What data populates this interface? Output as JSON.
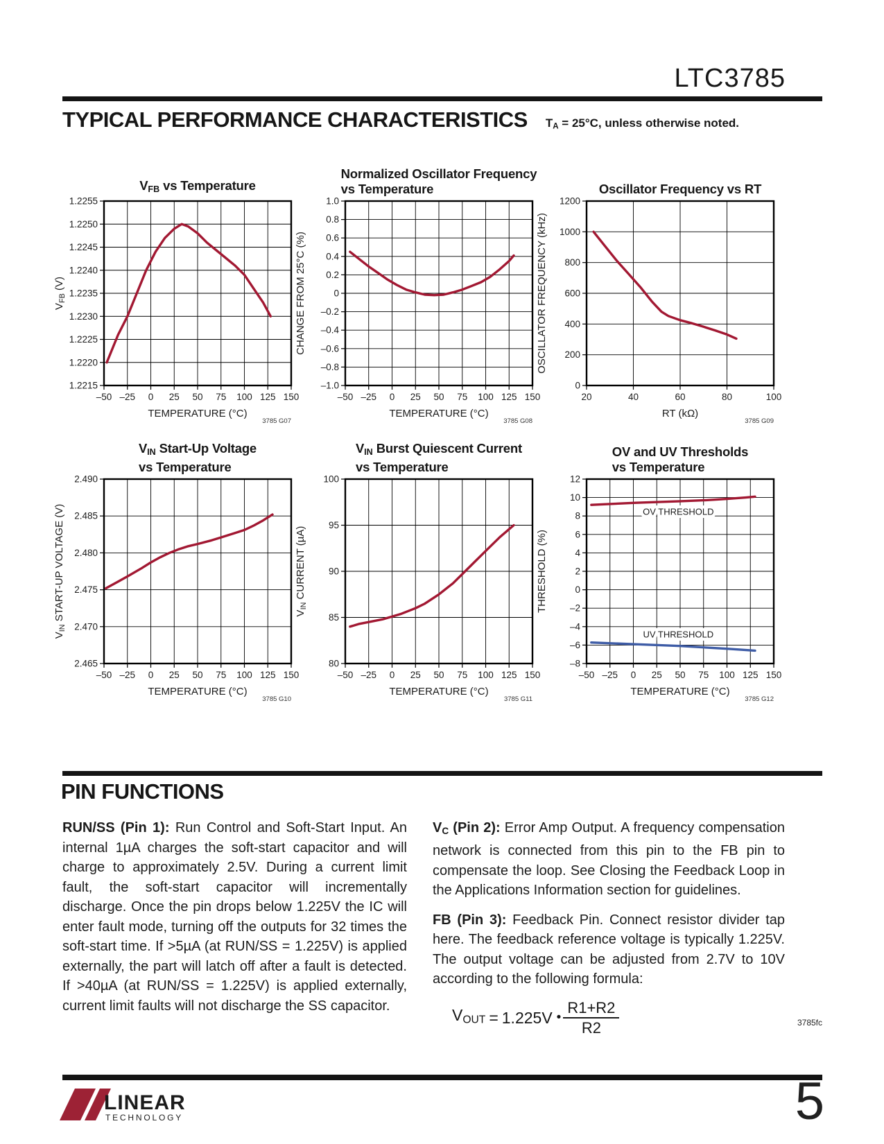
{
  "header": {
    "doc_title": "LTC3785",
    "section_title": "TYPICAL PERFORMANCE CHARACTERISTICS",
    "section_note": "T_{A} = 25°C, unless otherwise noted."
  },
  "colors": {
    "curve_red": "#A21832",
    "curve_blue": "#3E5CA6",
    "logo_red": "#9D2235"
  },
  "chart_data": [
    {
      "type": "line",
      "id": "3785 G07",
      "title_lines": [
        "V_{FB} vs Temperature"
      ],
      "xlabel": "TEMPERATURE (°C)",
      "ylabel": "V_{FB} (V)",
      "xlim": [
        -50,
        150
      ],
      "ylim": [
        1.2215,
        1.2255
      ],
      "xticks": [
        -50,
        -25,
        0,
        25,
        50,
        75,
        100,
        125,
        150
      ],
      "xticklabels": [
        "–50",
        "–25",
        "0",
        "25",
        "50",
        "75",
        "100",
        "125",
        "150"
      ],
      "yticks": [
        1.2255,
        1.225,
        1.2245,
        1.224,
        1.2235,
        1.223,
        1.2225,
        1.222,
        1.2215
      ],
      "yticklabels": [
        "1.2255",
        "1.2250",
        "1.2245",
        "1.2240",
        "1.2235",
        "1.2230",
        "1.2225",
        "1.2220",
        "1.2215"
      ],
      "series": [
        {
          "name": "vfb",
          "color": "#A21832",
          "points": [
            [
              -47,
              1.222
            ],
            [
              -35,
              1.2226
            ],
            [
              -25,
              1.223
            ],
            [
              -15,
              1.2235
            ],
            [
              -5,
              1.224
            ],
            [
              5,
              1.2244
            ],
            [
              15,
              1.2247
            ],
            [
              25,
              1.2249
            ],
            [
              33,
              1.225
            ],
            [
              40,
              1.22495
            ],
            [
              50,
              1.2248
            ],
            [
              60,
              1.2246
            ],
            [
              75,
              1.22435
            ],
            [
              90,
              1.2241
            ],
            [
              100,
              1.2239
            ],
            [
              110,
              1.2236
            ],
            [
              120,
              1.2233
            ],
            [
              128,
              1.223
            ]
          ]
        }
      ],
      "annotations": []
    },
    {
      "type": "line",
      "id": "3785 G08",
      "title_lines": [
        "Normalized Oscillator Frequency",
        "vs Temperature"
      ],
      "xlabel": "TEMPERATURE (°C)",
      "ylabel": "CHANGE FROM 25°C (%)",
      "xlim": [
        -50,
        150
      ],
      "ylim": [
        -1.0,
        1.0
      ],
      "xticks": [
        -50,
        -25,
        0,
        25,
        50,
        75,
        100,
        125,
        150
      ],
      "xticklabels": [
        "–50",
        "–25",
        "0",
        "25",
        "50",
        "75",
        "100",
        "125",
        "150"
      ],
      "yticks": [
        1.0,
        0.8,
        0.6,
        0.4,
        0.2,
        0,
        -0.2,
        -0.4,
        -0.6,
        -0.8,
        -1.0
      ],
      "yticklabels": [
        "1.0",
        "0.8",
        "0.6",
        "0.4",
        "0.2",
        "0",
        "–0.2",
        "–0.4",
        "–0.6",
        "–0.8",
        "–1.0"
      ],
      "series": [
        {
          "name": "freq-change",
          "color": "#A21832",
          "points": [
            [
              -45,
              0.45
            ],
            [
              -35,
              0.37
            ],
            [
              -25,
              0.29
            ],
            [
              -15,
              0.22
            ],
            [
              -5,
              0.15
            ],
            [
              5,
              0.09
            ],
            [
              15,
              0.04
            ],
            [
              25,
              0.01
            ],
            [
              35,
              -0.015
            ],
            [
              45,
              -0.02
            ],
            [
              55,
              -0.015
            ],
            [
              65,
              0.01
            ],
            [
              75,
              0.04
            ],
            [
              85,
              0.08
            ],
            [
              95,
              0.12
            ],
            [
              105,
              0.18
            ],
            [
              115,
              0.26
            ],
            [
              125,
              0.35
            ],
            [
              130,
              0.41
            ]
          ]
        }
      ],
      "annotations": []
    },
    {
      "type": "line",
      "id": "3785 G09",
      "title_lines": [
        "Oscillator Frequency vs RT"
      ],
      "xlabel": "RT (kΩ)",
      "ylabel": "OSCILLATOR FREQUENCY (kHz)",
      "xlim": [
        20,
        100
      ],
      "ylim": [
        0,
        1200
      ],
      "xticks": [
        20,
        40,
        60,
        80,
        100
      ],
      "xticklabels": [
        "20",
        "40",
        "60",
        "80",
        "100"
      ],
      "yticks": [
        1200,
        1000,
        800,
        600,
        400,
        200,
        0
      ],
      "yticklabels": [
        "1200",
        "1000",
        "800",
        "600",
        "400",
        "200",
        "0"
      ],
      "series": [
        {
          "name": "osc-freq",
          "color": "#A21832",
          "points": [
            [
              23,
              1000
            ],
            [
              28,
              905
            ],
            [
              33,
              810
            ],
            [
              38,
              725
            ],
            [
              43,
              640
            ],
            [
              48,
              545
            ],
            [
              52,
              480
            ],
            [
              55,
              452
            ],
            [
              60,
              425
            ],
            [
              65,
              405
            ],
            [
              70,
              382
            ],
            [
              75,
              358
            ],
            [
              80,
              332
            ],
            [
              84,
              305
            ]
          ]
        }
      ],
      "annotations": []
    },
    {
      "type": "line",
      "id": "3785 G10",
      "title_lines": [
        "V_{IN} Start-Up Voltage",
        "vs Temperature"
      ],
      "xlabel": "TEMPERATURE (°C)",
      "ylabel": "V_{IN} START-UP VOLTAGE (V)",
      "xlim": [
        -50,
        150
      ],
      "ylim": [
        2.465,
        2.49
      ],
      "xticks": [
        -50,
        -25,
        0,
        25,
        50,
        75,
        100,
        125,
        150
      ],
      "xticklabels": [
        "–50",
        "–25",
        "0",
        "25",
        "50",
        "75",
        "100",
        "125",
        "150"
      ],
      "yticks": [
        2.49,
        2.485,
        2.48,
        2.475,
        2.47,
        2.465
      ],
      "yticklabels": [
        "2.490",
        "2.485",
        "2.480",
        "2.475",
        "2.470",
        "2.465"
      ],
      "series": [
        {
          "name": "startup-voltage",
          "color": "#A21832",
          "points": [
            [
              -48,
              2.4752
            ],
            [
              -35,
              2.4761
            ],
            [
              -25,
              2.4768
            ],
            [
              -10,
              2.4779
            ],
            [
              0,
              2.4787
            ],
            [
              10,
              2.4794
            ],
            [
              20,
              2.48
            ],
            [
              30,
              2.4805
            ],
            [
              40,
              2.4809
            ],
            [
              50,
              2.4812
            ],
            [
              65,
              2.4817
            ],
            [
              75,
              2.4821
            ],
            [
              90,
              2.4827
            ],
            [
              100,
              2.4831
            ],
            [
              110,
              2.4837
            ],
            [
              120,
              2.4844
            ],
            [
              130,
              2.4852
            ]
          ]
        }
      ],
      "annotations": []
    },
    {
      "type": "line",
      "id": "3785 G11",
      "title_lines": [
        "V_{IN} Burst Quiescent Current",
        "vs Temperature"
      ],
      "xlabel": "TEMPERATURE (°C)",
      "ylabel": "V_{IN} CURRENT (µA)",
      "xlim": [
        -50,
        150
      ],
      "ylim": [
        80,
        100
      ],
      "xticks": [
        -50,
        -25,
        0,
        25,
        50,
        75,
        100,
        125,
        150
      ],
      "xticklabels": [
        "–50",
        "–25",
        "0",
        "25",
        "50",
        "75",
        "100",
        "125",
        "150"
      ],
      "yticks": [
        100,
        95,
        90,
        85,
        80
      ],
      "yticklabels": [
        "100",
        "95",
        "90",
        "85",
        "80"
      ],
      "series": [
        {
          "name": "vin-current",
          "color": "#A21832",
          "points": [
            [
              -45,
              84.0
            ],
            [
              -35,
              84.3
            ],
            [
              -25,
              84.5
            ],
            [
              -10,
              84.8
            ],
            [
              0,
              85.1
            ],
            [
              10,
              85.4
            ],
            [
              25,
              86.0
            ],
            [
              35,
              86.5
            ],
            [
              50,
              87.5
            ],
            [
              65,
              88.7
            ],
            [
              75,
              89.7
            ],
            [
              90,
              91.2
            ],
            [
              100,
              92.2
            ],
            [
              115,
              93.7
            ],
            [
              130,
              95.0
            ]
          ]
        }
      ],
      "annotations": []
    },
    {
      "type": "line",
      "id": "3785 G12",
      "title_lines": [
        "OV and UV Thresholds",
        "vs Temperature"
      ],
      "xlabel": "TEMPERATURE (°C)",
      "ylabel": "THRESHOLD (%)",
      "xlim": [
        -50,
        150
      ],
      "ylim": [
        -8,
        12
      ],
      "xticks": [
        -50,
        -25,
        0,
        25,
        50,
        75,
        100,
        125,
        150
      ],
      "xticklabels": [
        "–50",
        "–25",
        "0",
        "25",
        "50",
        "75",
        "100",
        "125",
        "150"
      ],
      "yticks": [
        12,
        10,
        8,
        6,
        4,
        2,
        0,
        -2,
        -4,
        -6,
        -8
      ],
      "yticklabels": [
        "12",
        "10",
        "8",
        "6",
        "4",
        "2",
        "0",
        "–2",
        "–4",
        "–6",
        "–8"
      ],
      "series": [
        {
          "name": "ov-threshold",
          "color": "#A21832",
          "points": [
            [
              -45,
              9.2
            ],
            [
              0,
              9.42
            ],
            [
              50,
              9.6
            ],
            [
              75,
              9.7
            ],
            [
              100,
              9.85
            ],
            [
              120,
              10.0
            ],
            [
              130,
              10.1
            ]
          ]
        },
        {
          "name": "uv-threshold",
          "color": "#3E5CA6",
          "points": [
            [
              -45,
              -5.72
            ],
            [
              0,
              -5.9
            ],
            [
              50,
              -6.1
            ],
            [
              75,
              -6.25
            ],
            [
              100,
              -6.4
            ],
            [
              130,
              -6.6
            ]
          ]
        }
      ],
      "annotations": [
        {
          "x": 48,
          "y": 8.45,
          "text": "OV THRESHOLD"
        },
        {
          "x": 48,
          "y": -4.85,
          "text": "UV THRESHOLD"
        }
      ]
    }
  ],
  "pin_functions": {
    "heading": "PIN FUNCTIONS",
    "left_column": [
      {
        "lead": "RUN/SS (Pin 1):",
        "body": "Run Control and Soft-Start Input. An internal 1µA charges the soft-start capacitor and will charge to approximately 2.5V. During a current limit fault, the soft-start capacitor will incrementally discharge. Once the pin drops below 1.225V the IC will enter fault mode, turning off the outputs for 32 times the soft-start time. If >5µA (at RUN/SS = 1.225V) is applied externally, the part will latch off after a fault is detected. If >40µA (at RUN/SS = 1.225V) is applied externally, current limit faults will not discharge the SS capacitor."
      }
    ],
    "right_column": [
      {
        "lead": "V_{C} (Pin 2):",
        "body": "Error Amp Output. A frequency compensation network is connected from this pin to the FB pin to compensate the loop. See Closing the Feedback Loop in the Applications Information section for guidelines."
      },
      {
        "lead": "FB (Pin 3):",
        "body": "Feedback Pin. Connect resistor divider tap here. The feedback reference voltage is typically 1.225V. The output voltage can be adjusted from 2.7V to 10V according to the following formula:"
      }
    ],
    "formula": {
      "lhs": "V_{OUT}",
      "eq": "=",
      "value": "1.225V",
      "operator": "•",
      "numerator": "R1+R2",
      "denominator": "R2"
    }
  },
  "footer": {
    "doc_code": "3785fc",
    "page_number": "5",
    "logo_text": "LINEAR",
    "logo_subtext": "TECHNOLOGY"
  }
}
